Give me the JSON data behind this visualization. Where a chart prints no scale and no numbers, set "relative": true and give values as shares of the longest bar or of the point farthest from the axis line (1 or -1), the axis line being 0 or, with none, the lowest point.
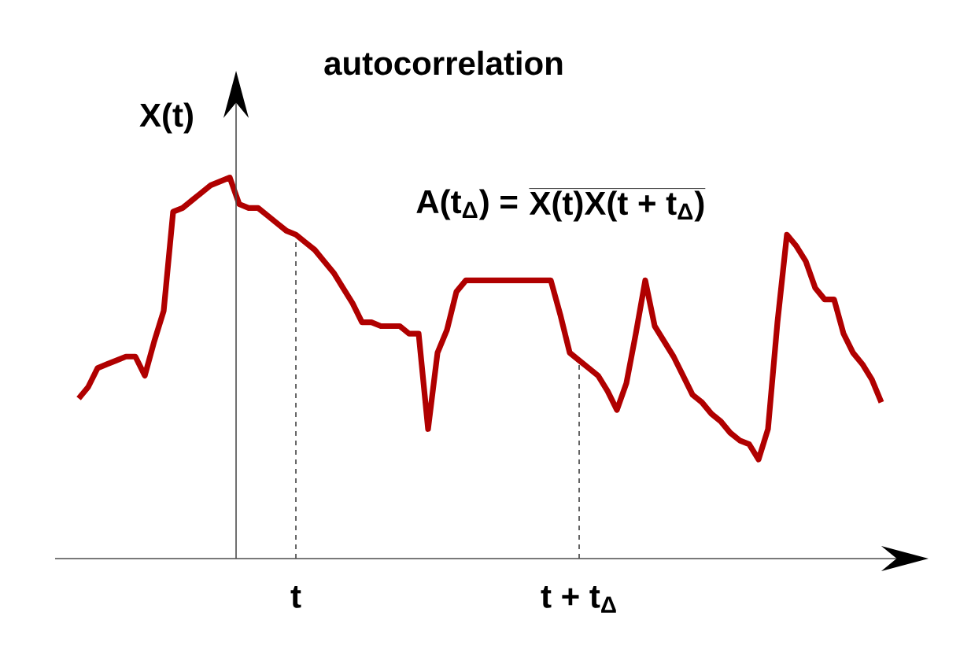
{
  "chart_data": {
    "type": "line",
    "title": "autocorrelation",
    "ylabel": "X(t)",
    "relative": true,
    "tick_labels": "x",
    "line_style": "solid",
    "color": "#b00000",
    "categories": [
      null,
      null,
      null,
      null,
      null,
      null,
      null,
      null,
      null,
      null,
      null,
      null,
      null,
      null,
      null,
      null,
      null,
      null,
      null,
      null,
      null,
      null,
      null,
      "t",
      null,
      null,
      null,
      null,
      null,
      null,
      null,
      null,
      null,
      null,
      null,
      null,
      null,
      null,
      null,
      null,
      null,
      null,
      null,
      null,
      null,
      null,
      null,
      null,
      null,
      null,
      null,
      null,
      null,
      "t + t$_{Δ}$",
      null,
      null,
      null,
      null,
      null,
      null,
      null,
      null,
      null,
      null,
      null,
      null,
      null,
      null,
      null,
      null,
      null,
      null,
      null,
      null,
      null,
      null,
      null,
      null,
      null,
      null,
      null,
      null,
      null,
      null,
      null,
      null
    ],
    "values": [
      0.42,
      0.45,
      0.5,
      0.51,
      0.52,
      0.53,
      0.53,
      0.48,
      0.57,
      0.65,
      0.91,
      0.92,
      0.94,
      0.96,
      0.98,
      0.99,
      1.0,
      0.93,
      0.92,
      0.92,
      0.9,
      0.88,
      0.86,
      0.85,
      0.83,
      0.81,
      0.78,
      0.75,
      0.71,
      0.67,
      0.62,
      0.62,
      0.61,
      0.61,
      0.61,
      0.59,
      0.59,
      0.34,
      0.54,
      0.6,
      0.7,
      0.73,
      0.73,
      0.73,
      0.73,
      0.73,
      0.73,
      0.73,
      0.73,
      0.73,
      0.73,
      0.64,
      0.54,
      0.52,
      0.5,
      0.48,
      0.44,
      0.39,
      0.46,
      0.59,
      0.73,
      0.61,
      0.57,
      0.53,
      0.48,
      0.43,
      0.41,
      0.38,
      0.36,
      0.33,
      0.31,
      0.3,
      0.26,
      0.34,
      0.62,
      0.85,
      0.82,
      0.78,
      0.71,
      0.68,
      0.68,
      0.59,
      0.54,
      0.51,
      0.47,
      0.41
    ],
    "annotations": [
      "A(t$_{Δ}$) =",
      "X(t)X(t + t$_{Δ}$)"
    ]
  }
}
